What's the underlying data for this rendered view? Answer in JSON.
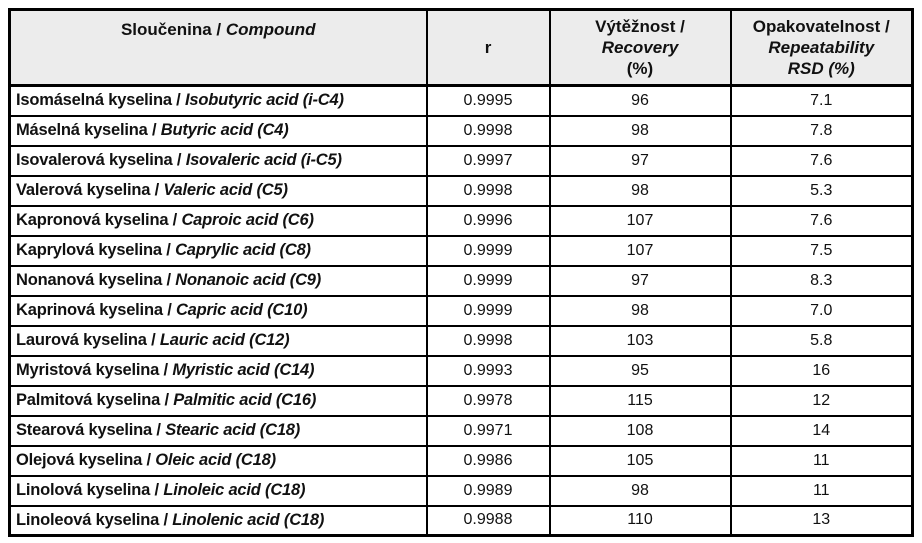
{
  "colors": {
    "header_background": "#ececec",
    "border": "#000000",
    "text": "#111111",
    "page_background": "#ffffff"
  },
  "table": {
    "separator": " / ",
    "headers": {
      "compound": {
        "czech": "Sloučenina",
        "separator": " / ",
        "english": "Compound"
      },
      "r": "r",
      "recovery": {
        "czech": "Výtěžnost /",
        "english": "Recovery",
        "unit": "(%)"
      },
      "repeatability": {
        "czech": "Opakovatelnost /",
        "english": "Repeatability",
        "unit": "RSD (%)"
      }
    },
    "rows": [
      {
        "czech": "Isomáselná kyselina",
        "english": "Isobutyric acid (i-C4)",
        "r": "0.9995",
        "recovery": "96",
        "rsd": "7.1"
      },
      {
        "czech": "Máselná kyselina",
        "english": "Butyric acid (C4)",
        "r": "0.9998",
        "recovery": "98",
        "rsd": "7.8"
      },
      {
        "czech": "Isovalerová kyselina",
        "english": "Isovaleric acid (i-C5)",
        "r": "0.9997",
        "recovery": "97",
        "rsd": "7.6"
      },
      {
        "czech": "Valerová kyselina",
        "english": "Valeric acid (C5)",
        "r": "0.9998",
        "recovery": "98",
        "rsd": "5.3"
      },
      {
        "czech": "Kapronová kyselina",
        "english": "Caproic acid (C6)",
        "r": "0.9996",
        "recovery": "107",
        "rsd": "7.6"
      },
      {
        "czech": "Kaprylová kyselina",
        "english": "Caprylic acid (C8)",
        "r": "0.9999",
        "recovery": "107",
        "rsd": "7.5"
      },
      {
        "czech": "Nonanová kyselina",
        "english": "Nonanoic acid (C9)",
        "r": "0.9999",
        "recovery": "97",
        "rsd": "8.3"
      },
      {
        "czech": "Kaprinová kyselina",
        "english": "Capric acid (C10)",
        "r": "0.9999",
        "recovery": "98",
        "rsd": "7.0"
      },
      {
        "czech": "Laurová kyselina",
        "english": "Lauric acid (C12)",
        "r": "0.9998",
        "recovery": "103",
        "rsd": "5.8"
      },
      {
        "czech": "Myristová kyselina",
        "english": "Myristic acid (C14)",
        "r": "0.9993",
        "recovery": "95",
        "rsd": "16"
      },
      {
        "czech": "Palmitová kyselina",
        "english": "Palmitic acid (C16)",
        "r": "0.9978",
        "recovery": "115",
        "rsd": "12"
      },
      {
        "czech": "Stearová kyselina",
        "english": "Stearic acid (C18)",
        "r": "0.9971",
        "recovery": "108",
        "rsd": "14"
      },
      {
        "czech": "Olejová kyselina",
        "english": "Oleic acid (C18)",
        "r": "0.9986",
        "recovery": "105",
        "rsd": "11"
      },
      {
        "czech": "Linolová kyselina",
        "english": "Linoleic acid (C18)",
        "r": "0.9989",
        "recovery": "98",
        "rsd": "11"
      },
      {
        "czech": "Linoleová kyselina",
        "english": "Linolenic acid (C18)",
        "r": "0.9988",
        "recovery": "110",
        "rsd": "13"
      }
    ]
  }
}
